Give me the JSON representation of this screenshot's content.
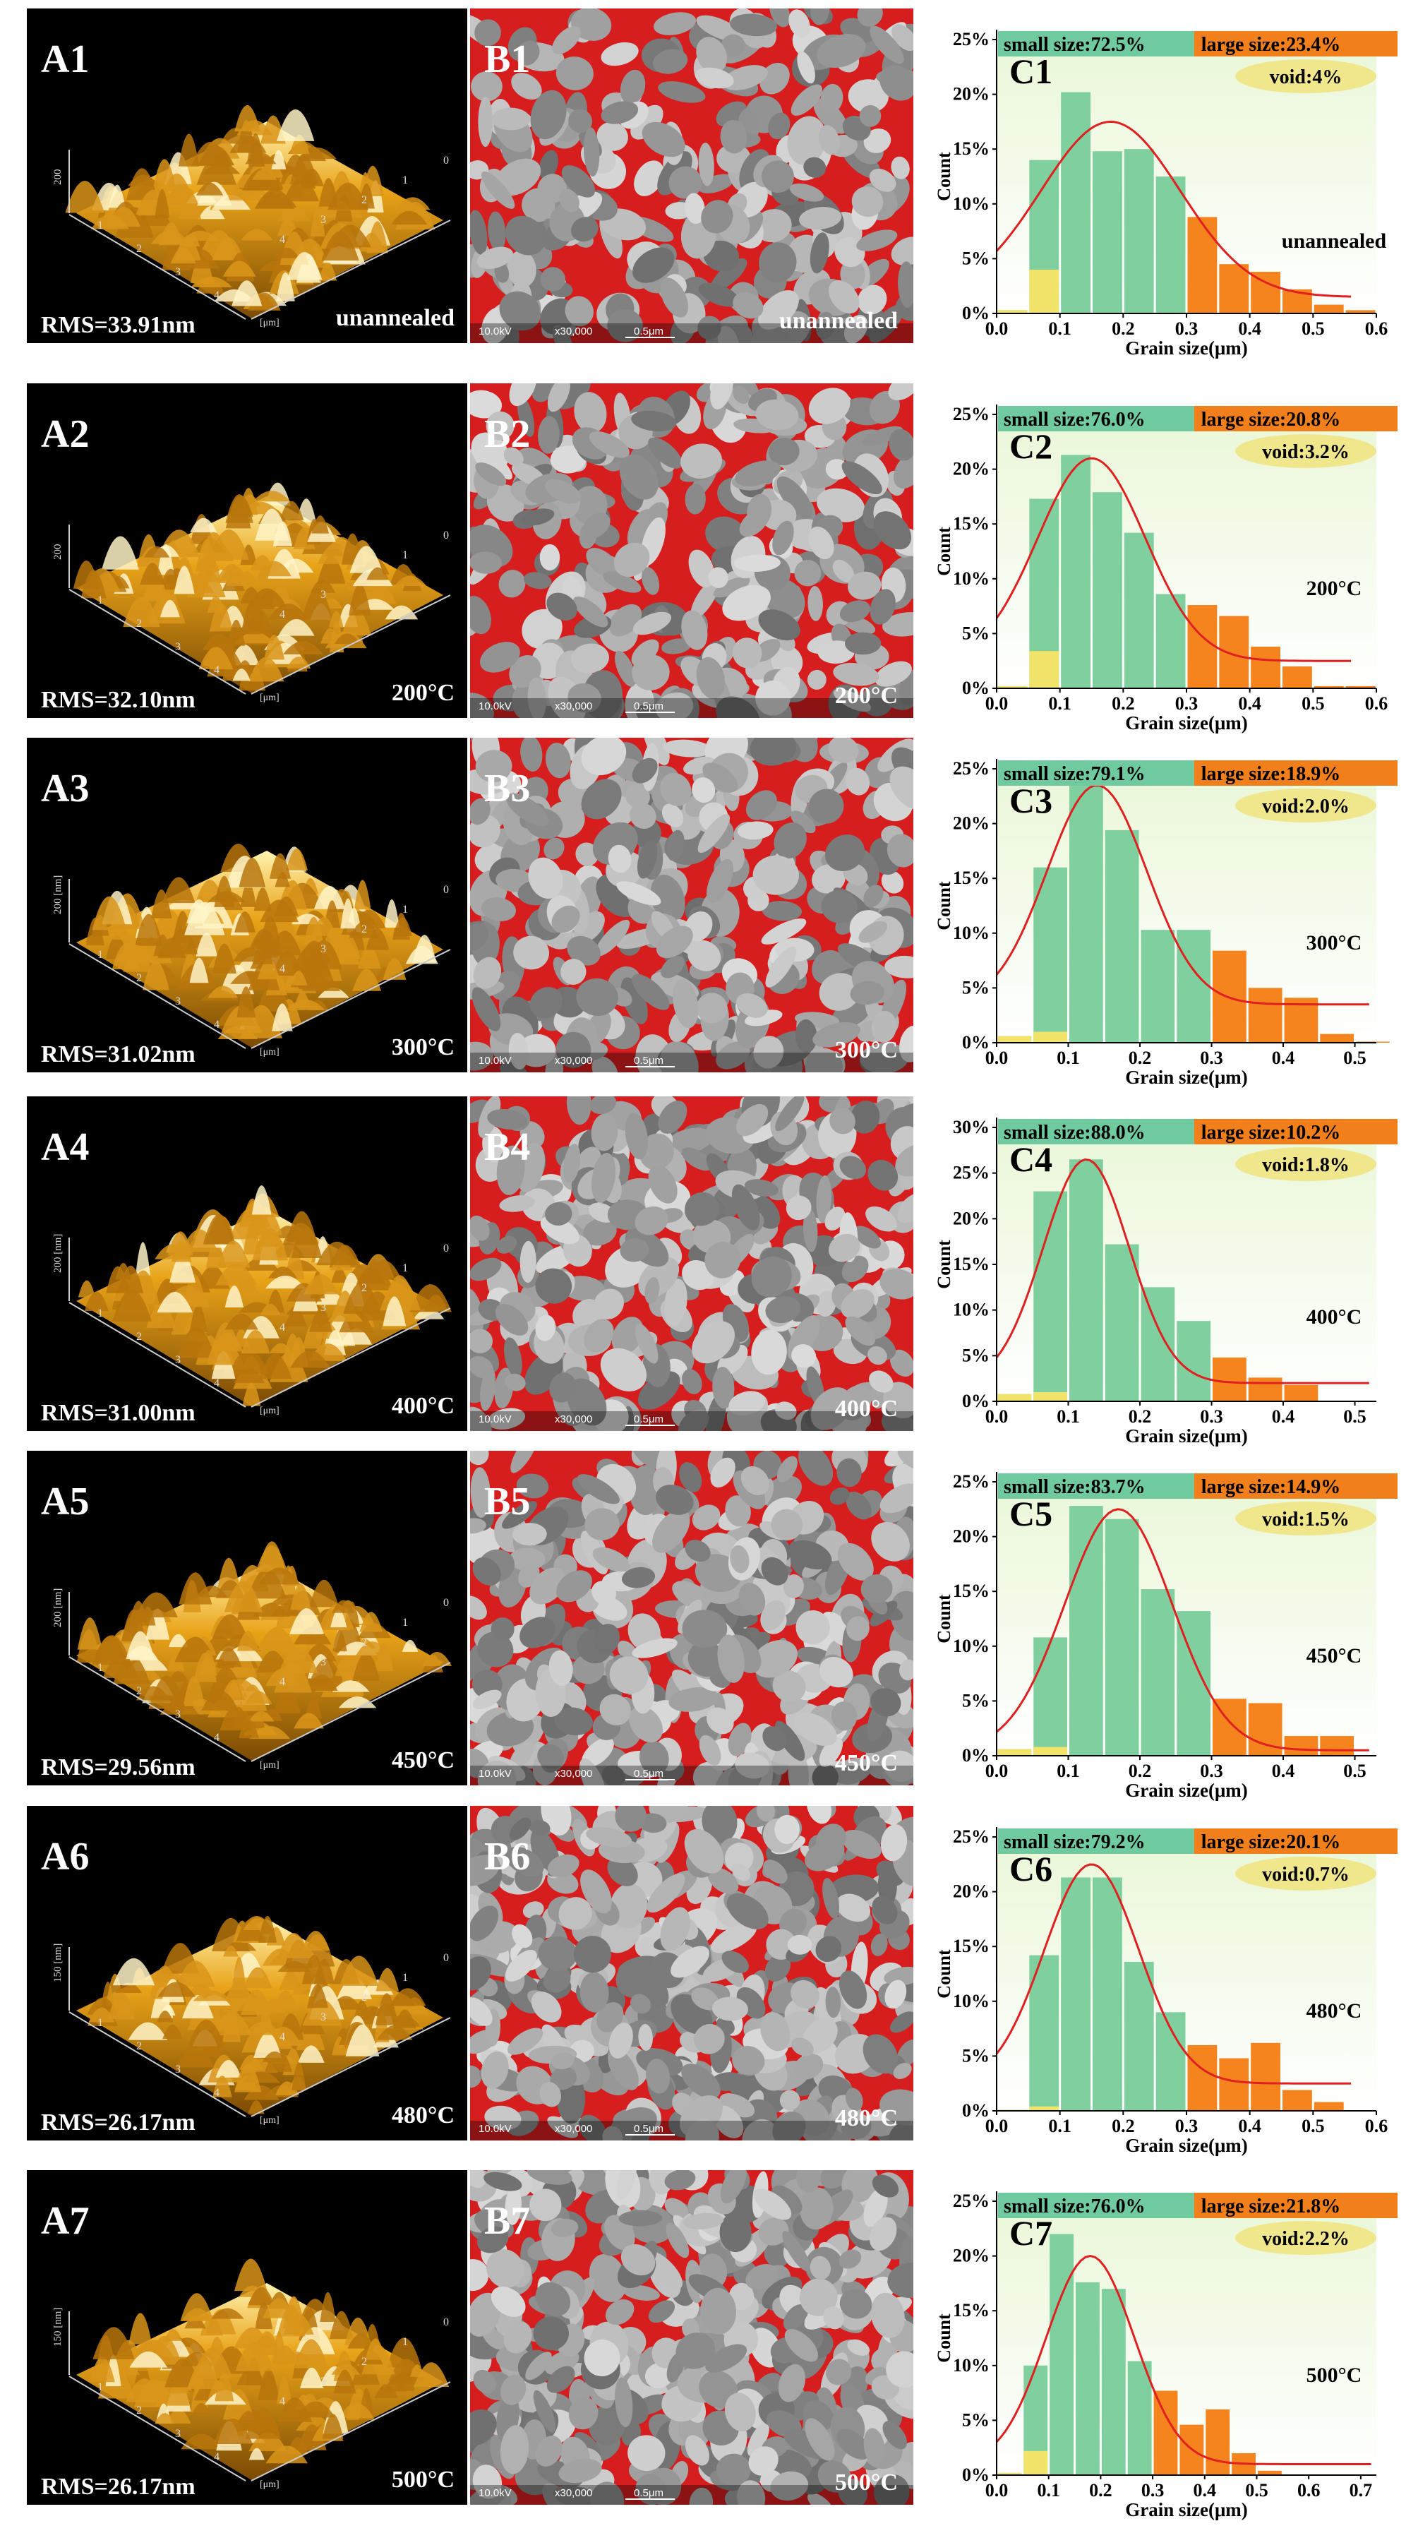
{
  "colors": {
    "small_bar": "#7fcf9f",
    "large_bar": "#f5841f",
    "void_bar": "#f2e36a",
    "fit_line": "#e02020",
    "small_header": "#6fcaa0",
    "large_header": "#f07f1c",
    "void_ellipse": "#f0e68c",
    "plot_bg_top": "#eaf7d8",
    "plot_bg_bottom": "#ffffff"
  },
  "common": {
    "afm_unit_label": "[μm]",
    "sem_voltage": "10.0kV",
    "sem_mag": "x30,000",
    "sem_scale": "0.5μm"
  },
  "rows": [
    {
      "afm_label": "A1",
      "sem_label": "B1",
      "chart_label": "C1",
      "rms": "RMS=33.91nm",
      "temp": "unannealed",
      "z_label": "200",
      "small": "small size:72.5%",
      "large": "large size:23.4%",
      "void": "void:4%",
      "chart_temp": "unannealed"
    },
    {
      "afm_label": "A2",
      "sem_label": "B2",
      "chart_label": "C2",
      "rms": "RMS=32.10nm",
      "temp": "200°C",
      "z_label": "200",
      "small": "small size:76.0%",
      "large": "large size:20.8%",
      "void": "void:3.2%",
      "chart_temp": "200°C"
    },
    {
      "afm_label": "A3",
      "sem_label": "B3",
      "chart_label": "C3",
      "rms": "RMS=31.02nm",
      "temp": "300°C",
      "z_label": "200 [nm]",
      "small": "small size:79.1%",
      "large": "large size:18.9%",
      "void": "void:2.0%",
      "chart_temp": "300°C"
    },
    {
      "afm_label": "A4",
      "sem_label": "B4",
      "chart_label": "C4",
      "rms": "RMS=31.00nm",
      "temp": "400°C",
      "z_label": "200 [nm]",
      "small": "small size:88.0%",
      "large": "large size:10.2%",
      "void": "void:1.8%",
      "chart_temp": "400°C"
    },
    {
      "afm_label": "A5",
      "sem_label": "B5",
      "chart_label": "C5",
      "rms": "RMS=29.56nm",
      "temp": "450°C",
      "z_label": "200 [nm]",
      "small": "small size:83.7%",
      "large": "large size:14.9%",
      "void": "void:1.5%",
      "chart_temp": "450°C"
    },
    {
      "afm_label": "A6",
      "sem_label": "B6",
      "chart_label": "C6",
      "rms": "RMS=26.17nm",
      "temp": "480°C",
      "z_label": "150 [nm]",
      "small": "small size:79.2%",
      "large": "large size:20.1%",
      "void": "void:0.7%",
      "chart_temp": "480°C"
    },
    {
      "afm_label": "A7",
      "sem_label": "B7",
      "chart_label": "C7",
      "rms": "RMS=26.17nm",
      "temp": "500°C",
      "z_label": "150 [nm]",
      "small": "small size:76.0%",
      "large": "large size:21.8%",
      "void": "void:2.2%",
      "chart_temp": "500°C"
    }
  ],
  "chart_data": [
    {
      "type": "bar",
      "title": "C1",
      "xlabel": "Grain size(μm)",
      "ylabel": "Count",
      "xlim": [
        0,
        0.6
      ],
      "ylim": [
        0,
        25
      ],
      "xticks": [
        0.0,
        0.1,
        0.2,
        0.3,
        0.4,
        0.5,
        0.6
      ],
      "yticks": [
        0,
        5,
        10,
        15,
        20,
        25
      ],
      "bar_width": 0.05,
      "bins": [
        0.025,
        0.075,
        0.125,
        0.175,
        0.225,
        0.275,
        0.325,
        0.375,
        0.425,
        0.475,
        0.525,
        0.575
      ],
      "counts": [
        0.3,
        14.0,
        20.2,
        14.8,
        15.0,
        12.5,
        8.8,
        4.5,
        3.8,
        2.2,
        0.8,
        0.3
      ],
      "void_counts": [
        0.3,
        4.0,
        0,
        0,
        0,
        0,
        0,
        0,
        0,
        0,
        0,
        0
      ],
      "categories": [
        "small",
        "small",
        "small",
        "small",
        "small",
        "small",
        "large",
        "large",
        "large",
        "large",
        "large",
        "large"
      ],
      "fit": {
        "mu": 0.18,
        "sigma": 0.11,
        "amp": 16.0,
        "base": 1.5,
        "x_range": [
          0.0,
          0.56
        ]
      }
    },
    {
      "type": "bar",
      "title": "C2",
      "xlabel": "Grain size(μm)",
      "ylabel": "Count",
      "xlim": [
        0,
        0.6
      ],
      "ylim": [
        0,
        25
      ],
      "xticks": [
        0.0,
        0.1,
        0.2,
        0.3,
        0.4,
        0.5,
        0.6
      ],
      "yticks": [
        0,
        5,
        10,
        15,
        20,
        25
      ],
      "bar_width": 0.05,
      "bins": [
        0.025,
        0.075,
        0.125,
        0.175,
        0.225,
        0.275,
        0.325,
        0.375,
        0.425,
        0.475,
        0.525,
        0.575
      ],
      "counts": [
        0.2,
        17.3,
        21.3,
        17.9,
        14.2,
        8.6,
        7.6,
        6.6,
        3.8,
        2.0,
        0.2,
        0.2
      ],
      "void_counts": [
        0.2,
        3.4,
        0,
        0,
        0,
        0,
        0,
        0,
        0,
        0,
        0,
        0
      ],
      "categories": [
        "small",
        "small",
        "small",
        "small",
        "small",
        "small",
        "large",
        "large",
        "large",
        "large",
        "large",
        "large"
      ],
      "fit": {
        "mu": 0.15,
        "sigma": 0.085,
        "amp": 18.5,
        "base": 2.5,
        "x_range": [
          0.0,
          0.56
        ]
      }
    },
    {
      "type": "bar",
      "title": "C3",
      "xlabel": "Grain size(μm)",
      "ylabel": "Count",
      "xlim": [
        0,
        0.53
      ],
      "ylim": [
        0,
        25
      ],
      "xticks": [
        0.0,
        0.1,
        0.2,
        0.3,
        0.4,
        0.5
      ],
      "yticks": [
        0,
        5,
        10,
        15,
        20,
        25
      ],
      "bar_width": 0.05,
      "bins": [
        0.025,
        0.075,
        0.125,
        0.175,
        0.225,
        0.275,
        0.325,
        0.375,
        0.425,
        0.475,
        0.525
      ],
      "counts": [
        0.6,
        16.0,
        23.7,
        19.4,
        10.3,
        10.3,
        8.4,
        5.0,
        4.1,
        0.8,
        0.1
      ],
      "void_counts": [
        0.6,
        1.0,
        0,
        0,
        0,
        0,
        0,
        0,
        0,
        0,
        0
      ],
      "categories": [
        "small",
        "small",
        "small",
        "small",
        "small",
        "small",
        "large",
        "large",
        "large",
        "large",
        "large"
      ],
      "fit": {
        "mu": 0.14,
        "sigma": 0.07,
        "amp": 20.0,
        "base": 3.5,
        "x_range": [
          0.0,
          0.52
        ]
      }
    },
    {
      "type": "bar",
      "title": "C4",
      "xlabel": "Grain size(μm)",
      "ylabel": "Count",
      "xlim": [
        0,
        0.53
      ],
      "ylim": [
        0,
        30
      ],
      "xticks": [
        0.0,
        0.1,
        0.2,
        0.3,
        0.4,
        0.5
      ],
      "yticks": [
        0,
        5,
        10,
        15,
        20,
        25,
        30
      ],
      "bar_width": 0.05,
      "bins": [
        0.025,
        0.075,
        0.125,
        0.175,
        0.225,
        0.275,
        0.325,
        0.375,
        0.425
      ],
      "counts": [
        0.8,
        23.0,
        26.5,
        17.2,
        12.5,
        8.8,
        4.8,
        2.6,
        1.8
      ],
      "void_counts": [
        0.8,
        1.0,
        0,
        0,
        0,
        0,
        0,
        0,
        0
      ],
      "categories": [
        "small",
        "small",
        "small",
        "small",
        "small",
        "small",
        "large",
        "large",
        "large"
      ],
      "fit": {
        "mu": 0.125,
        "sigma": 0.06,
        "amp": 24.5,
        "base": 2.0,
        "x_range": [
          0.0,
          0.52
        ]
      }
    },
    {
      "type": "bar",
      "title": "C5",
      "xlabel": "Grain size(μm)",
      "ylabel": "Count",
      "xlim": [
        0,
        0.53
      ],
      "ylim": [
        0,
        25
      ],
      "xticks": [
        0.0,
        0.1,
        0.2,
        0.3,
        0.4,
        0.5
      ],
      "yticks": [
        0,
        5,
        10,
        15,
        20,
        25
      ],
      "bar_width": 0.05,
      "bins": [
        0.025,
        0.075,
        0.125,
        0.175,
        0.225,
        0.275,
        0.325,
        0.375,
        0.425,
        0.475
      ],
      "counts": [
        0.6,
        10.8,
        22.8,
        21.6,
        15.2,
        13.2,
        5.2,
        4.8,
        1.8,
        1.8
      ],
      "void_counts": [
        0.6,
        0.8,
        0,
        0,
        0,
        0,
        0,
        0,
        0,
        0
      ],
      "categories": [
        "small",
        "small",
        "small",
        "small",
        "small",
        "small",
        "large",
        "large",
        "large",
        "large"
      ],
      "fit": {
        "mu": 0.17,
        "sigma": 0.075,
        "amp": 22.0,
        "base": 0.5,
        "x_range": [
          0.0,
          0.52
        ]
      }
    },
    {
      "type": "bar",
      "title": "C6",
      "xlabel": "Grain size(μm)",
      "ylabel": "Count",
      "xlim": [
        0,
        0.6
      ],
      "ylim": [
        0,
        25
      ],
      "xticks": [
        0.0,
        0.1,
        0.2,
        0.3,
        0.4,
        0.5,
        0.6
      ],
      "yticks": [
        0,
        5,
        10,
        15,
        20,
        25
      ],
      "bar_width": 0.05,
      "bins": [
        0.025,
        0.075,
        0.125,
        0.175,
        0.225,
        0.275,
        0.325,
        0.375,
        0.425,
        0.475,
        0.525
      ],
      "counts": [
        0.1,
        14.2,
        21.3,
        21.3,
        13.6,
        9.0,
        6.0,
        4.8,
        6.2,
        1.9,
        0.8
      ],
      "void_counts": [
        0.1,
        0.4,
        0,
        0,
        0,
        0,
        0,
        0,
        0,
        0,
        0
      ],
      "categories": [
        "small",
        "small",
        "small",
        "small",
        "small",
        "small",
        "large",
        "large",
        "large",
        "large",
        "large"
      ],
      "fit": {
        "mu": 0.15,
        "sigma": 0.075,
        "amp": 20.0,
        "base": 2.5,
        "x_range": [
          0.0,
          0.56
        ]
      }
    },
    {
      "type": "bar",
      "title": "C7",
      "xlabel": "Grain size(μm)",
      "ylabel": "Count",
      "xlim": [
        0,
        0.73
      ],
      "ylim": [
        0,
        25
      ],
      "xticks": [
        0.0,
        0.1,
        0.2,
        0.3,
        0.4,
        0.5,
        0.6,
        0.7
      ],
      "yticks": [
        0,
        5,
        10,
        15,
        20,
        25
      ],
      "bar_width": 0.05,
      "bins": [
        0.025,
        0.075,
        0.125,
        0.175,
        0.225,
        0.275,
        0.325,
        0.375,
        0.425,
        0.475,
        0.525
      ],
      "counts": [
        0.2,
        10.0,
        22.0,
        17.6,
        17.0,
        10.4,
        7.7,
        4.6,
        6.0,
        2.0,
        0.4
      ],
      "void_counts": [
        0.2,
        2.2,
        0,
        0,
        0,
        0,
        0,
        0,
        0,
        0,
        0
      ],
      "categories": [
        "small",
        "small",
        "small",
        "small",
        "small",
        "small",
        "large",
        "large",
        "large",
        "large",
        "large"
      ],
      "fit": {
        "mu": 0.18,
        "sigma": 0.085,
        "amp": 19.0,
        "base": 1.0,
        "x_range": [
          0.0,
          0.72
        ]
      }
    }
  ]
}
